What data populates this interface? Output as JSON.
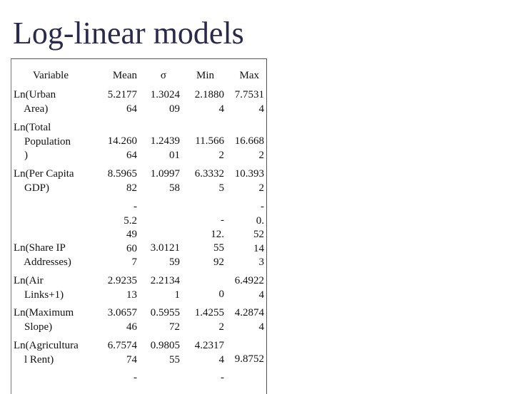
{
  "slide": {
    "title": "Log-linear models"
  },
  "table": {
    "headers": {
      "variable": "Variable",
      "mean": "Mean",
      "sigma": "σ",
      "min": "Min",
      "max": "Max"
    },
    "rows": [
      {
        "label": "Ln(Urban\n    Area)",
        "mean": "5.2177\n64",
        "sigma": "1.3024\n09",
        "min": "2.1880\n4",
        "max": "7.7531\n4"
      },
      {
        "label": "Ln(Total\n    Population\n    )",
        "mean": "14.260\n64",
        "sigma": "1.2439\n01",
        "min": "11.566\n2",
        "max": "16.668\n2"
      },
      {
        "label": "Ln(Per Capita\n    GDP)",
        "mean": "8.5965\n82",
        "sigma": "1.0997\n58",
        "min": "6.3332\n5",
        "max": "10.393\n2"
      },
      {
        "label": "Ln(Share IP\n    Addresses)",
        "mean": "-\n5.2\n49\n60\n7",
        "sigma": "3.0121\n59",
        "min": "-\n12.\n55\n92",
        "max": "-\n0.\n52\n14\n3"
      },
      {
        "label": "Ln(Air\n    Links+1)",
        "mean": "2.9235\n13",
        "sigma": "2.2134\n1",
        "min": "0",
        "max": "6.4922\n4"
      },
      {
        "label": "Ln(Maximum\n    Slope)",
        "mean": "3.0657\n46",
        "sigma": "0.5955\n72",
        "min": "1.4255\n2",
        "max": "4.2874\n4"
      },
      {
        "label": "Ln(Agricultura\n    l Rent)",
        "mean": "6.7574\n74",
        "sigma": "0.9805\n55",
        "min": "4.2317\n4",
        "max": "9.8752"
      },
      {
        "label": "",
        "mean": "-",
        "sigma": "",
        "min": "-",
        "max": ""
      }
    ]
  }
}
